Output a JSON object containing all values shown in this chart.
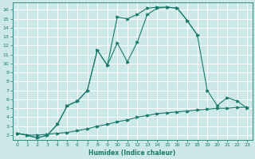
{
  "xlabel": "Humidex (Indice chaleur)",
  "bg_color": "#cce8e8",
  "grid_color": "#ffffff",
  "line_color": "#1a7a6e",
  "xlim": [
    -0.5,
    23.5
  ],
  "ylim": [
    1.5,
    16.8
  ],
  "xticks": [
    0,
    1,
    2,
    3,
    4,
    5,
    6,
    7,
    8,
    9,
    10,
    11,
    12,
    13,
    14,
    15,
    16,
    17,
    18,
    19,
    20,
    21,
    22,
    23
  ],
  "yticks": [
    2,
    3,
    4,
    5,
    6,
    7,
    8,
    9,
    10,
    11,
    12,
    13,
    14,
    15,
    16
  ],
  "line1_x": [
    0,
    1,
    2,
    3,
    4,
    5,
    6,
    7,
    8,
    9,
    10,
    11,
    12,
    13,
    14,
    15,
    16,
    17,
    18,
    19,
    20,
    21,
    22,
    23
  ],
  "line1_y": [
    2.2,
    2.0,
    2.0,
    2.1,
    2.2,
    2.3,
    2.5,
    2.7,
    3.0,
    3.2,
    3.5,
    3.7,
    4.0,
    4.2,
    4.4,
    4.5,
    4.6,
    4.7,
    4.8,
    4.9,
    5.0,
    5.0,
    5.1,
    5.1
  ],
  "line2_x": [
    0,
    1,
    2,
    3,
    4,
    5,
    6,
    7,
    8,
    9,
    10,
    11,
    12,
    13,
    14,
    15,
    16,
    17,
    18,
    19,
    20,
    21,
    22,
    23
  ],
  "line2_y": [
    2.2,
    2.0,
    1.7,
    2.0,
    3.2,
    5.3,
    5.8,
    7.0,
    11.5,
    9.8,
    15.2,
    15.0,
    15.5,
    16.2,
    16.3,
    16.3,
    16.2,
    14.8,
    13.2,
    7.0,
    5.3,
    6.2,
    5.8,
    5.0
  ],
  "line3_x": [
    0,
    2,
    3,
    4,
    5,
    6,
    7,
    8,
    9,
    10,
    11,
    12,
    13,
    14,
    15,
    16,
    17,
    18
  ],
  "line3_y": [
    2.2,
    1.7,
    2.0,
    3.2,
    5.3,
    5.8,
    7.0,
    11.5,
    9.8,
    12.3,
    10.2,
    12.4,
    15.5,
    16.2,
    16.3,
    16.2,
    14.8,
    13.2
  ]
}
